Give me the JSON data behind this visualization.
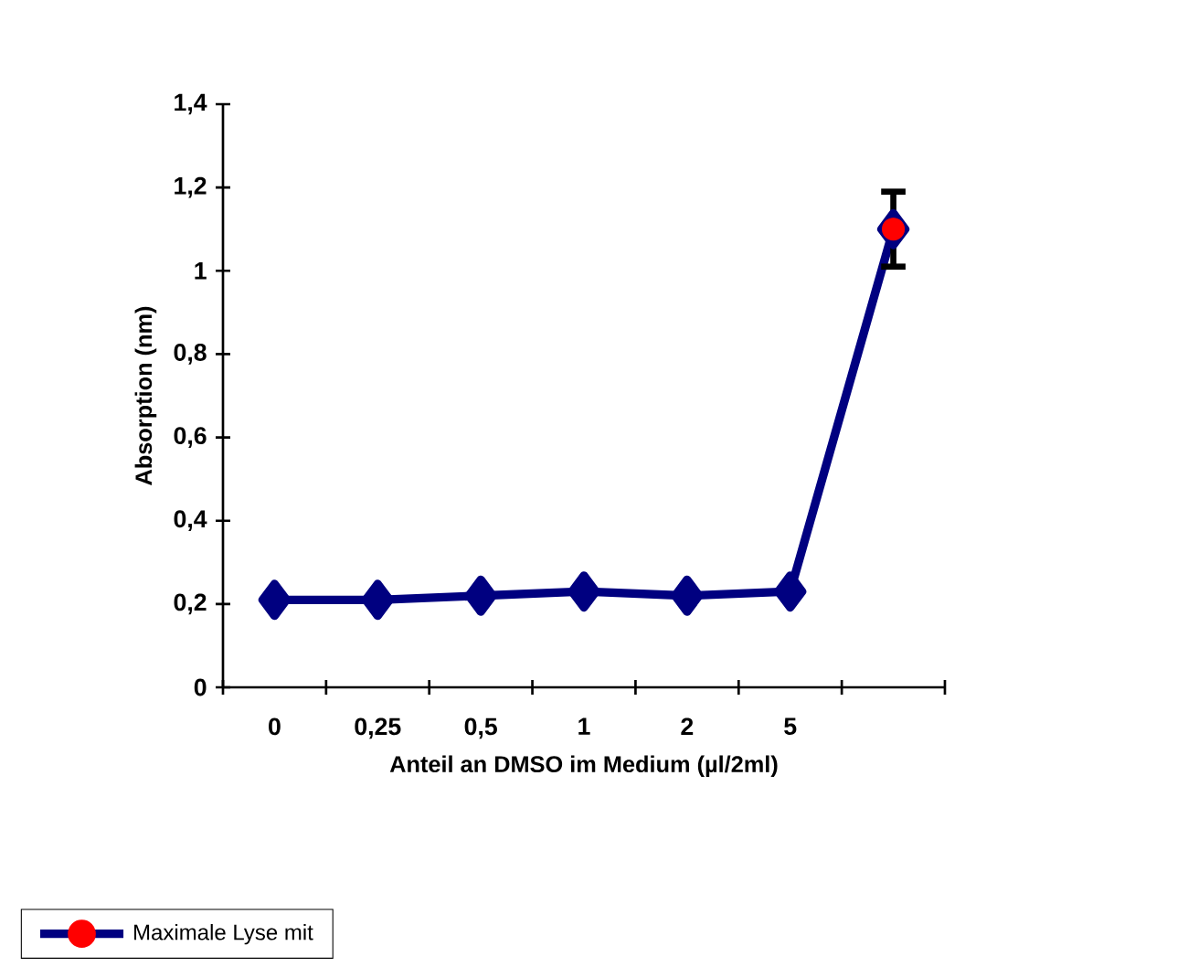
{
  "chart_data": {
    "type": "line",
    "xlabel": "Anteil an DMSO im Medium (µl/2ml)",
    "ylabel": "Absorption (nm)",
    "categories": [
      "0",
      "0,25",
      "0,5",
      "1",
      "2",
      "5",
      null
    ],
    "series": [
      {
        "name": "Maximale Lyse mit",
        "color": "#000080",
        "values": [
          0.21,
          0.21,
          0.22,
          0.23,
          0.22,
          0.23,
          1.1
        ],
        "marker": "diamond"
      },
      {
        "type": "scatter",
        "color": "#ff0000",
        "values": [
          null,
          null,
          null,
          null,
          null,
          null,
          1.1
        ],
        "errors": [
          null,
          null,
          null,
          null,
          null,
          null,
          [
            1.01,
            1.19
          ]
        ],
        "marker": "circle"
      }
    ],
    "ylim": [
      0,
      1.4
    ],
    "yticks": [
      0,
      {
        "value": 0.2,
        "label": "0,2"
      },
      {
        "value": 0.4,
        "label": "0,4"
      },
      {
        "value": 0.6,
        "label": "0,6"
      },
      {
        "value": 0.8,
        "label": "0,8"
      },
      1,
      {
        "value": 1.2,
        "label": "1,2"
      },
      {
        "value": 1.4,
        "label": "1,4"
      }
    ],
    "grid": false,
    "legend": "bottom left"
  }
}
